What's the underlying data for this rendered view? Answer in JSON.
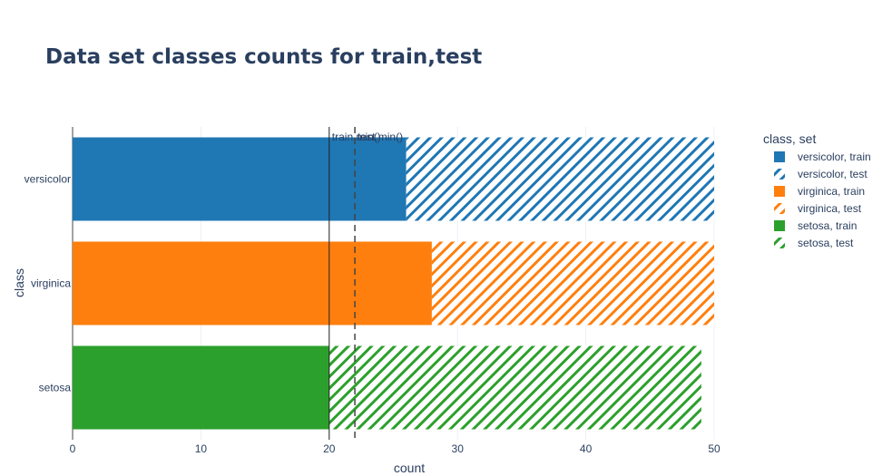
{
  "chart_data": {
    "type": "bar",
    "orientation": "horizontal",
    "barmode": "stack",
    "title": "Data set classes counts for train,test",
    "xlabel": "count",
    "ylabel": "class",
    "xlim": [
      0,
      50
    ],
    "xticks": [
      0,
      10,
      20,
      30,
      40,
      50
    ],
    "grid": true,
    "legend_title": "class, set",
    "legend_position": "right",
    "categories": [
      "versicolor",
      "virginica",
      "setosa"
    ],
    "series": [
      {
        "name": "versicolor, train",
        "category": "versicolor",
        "value": 26,
        "pattern": "solid",
        "color": "#1f77b4"
      },
      {
        "name": "versicolor, test",
        "category": "versicolor",
        "value": 24,
        "pattern": "hatch",
        "color": "#1f77b4"
      },
      {
        "name": "virginica, train",
        "category": "virginica",
        "value": 28,
        "pattern": "solid",
        "color": "#ff7f0e"
      },
      {
        "name": "virginica, test",
        "category": "virginica",
        "value": 22,
        "pattern": "hatch",
        "color": "#ff7f0e"
      },
      {
        "name": "setosa, train",
        "category": "setosa",
        "value": 20,
        "pattern": "solid",
        "color": "#2ca02c"
      },
      {
        "name": "setosa, test",
        "category": "setosa",
        "value": 29,
        "pattern": "hatch",
        "color": "#2ca02c"
      }
    ],
    "reference_lines": [
      {
        "x": 20,
        "style": "solid",
        "label": "train.min()"
      },
      {
        "x": 22,
        "style": "dash",
        "label": "test.min()"
      }
    ]
  }
}
